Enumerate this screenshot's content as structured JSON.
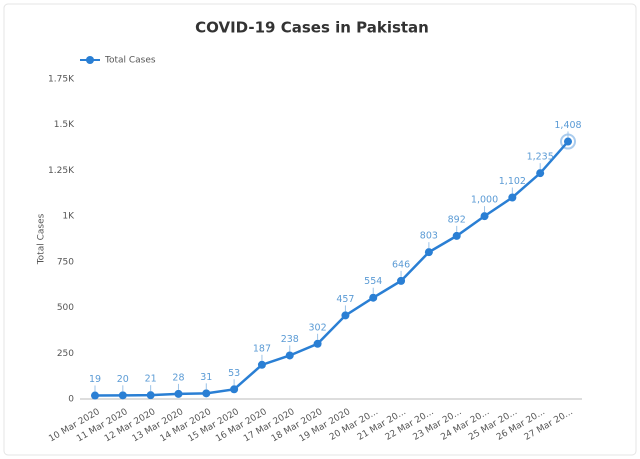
{
  "chart_data": {
    "type": "line",
    "title": "COVID-19 Cases in Pakistan",
    "y_label": "Total Cases",
    "categories": [
      "10 Mar 2020",
      "11 Mar 2020",
      "12 Mar 2020",
      "13 Mar 2020",
      "14 Mar 2020",
      "15 Mar 2020",
      "16 Mar 2020",
      "17 Mar 2020",
      "18 Mar 2020",
      "19 Mar 2020",
      "20 Mar 20...",
      "21 Mar 20...",
      "22 Mar 20...",
      "23 Mar 20...",
      "24 Mar 20...",
      "25 Mar 20...",
      "26 Mar 20...",
      "27 Mar 20..."
    ],
    "series": [
      {
        "name": "Total Cases",
        "color": "#2a7fd4",
        "values": [
          19,
          20,
          21,
          28,
          31,
          53,
          187,
          238,
          302,
          457,
          554,
          646,
          803,
          892,
          1000,
          1102,
          1235,
          1408
        ],
        "value_labels": [
          "19",
          "20",
          "21",
          "28",
          "31",
          "53",
          "187",
          "238",
          "302",
          "457",
          "554",
          "646",
          "803",
          "892",
          "1,000",
          "1,102",
          "1,235",
          "1,408"
        ]
      }
    ],
    "ylim": [
      0,
      1750
    ],
    "yticks": [
      0,
      250,
      500,
      750,
      {
        "value": 1000,
        "label": "1K"
      },
      {
        "value": 1250,
        "label": "1.25K"
      },
      {
        "value": 1500,
        "label": "1.5K"
      },
      {
        "value": 1750,
        "label": "1.75K"
      }
    ],
    "grid": false,
    "legend": "top-left"
  }
}
